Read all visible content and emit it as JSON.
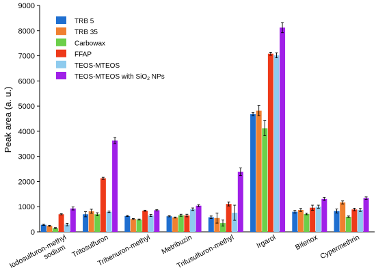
{
  "chart_data": {
    "type": "bar",
    "ylabel": "Peak area (a. u.)",
    "xlabel": "",
    "ylim": [
      0,
      9000
    ],
    "yticks": [
      0,
      1000,
      2000,
      3000,
      4000,
      5000,
      6000,
      7000,
      8000,
      9000
    ],
    "grid": false,
    "legend_position": "top-left",
    "categories": [
      [
        "Iodosulfuron-methyl",
        "sodium"
      ],
      [
        "Tritosulfuron"
      ],
      [
        "Tribenuron-methyl"
      ],
      [
        "Metribuzin"
      ],
      [
        "Trifusulfuron-methyl"
      ],
      [
        "Irgarol"
      ],
      [
        "Bifenox"
      ],
      [
        "Cypermethrin"
      ]
    ],
    "series": [
      {
        "name": "TRB 5",
        "color": "#1f6fd0",
        "values": [
          280,
          700,
          630,
          620,
          580,
          4680,
          800,
          830
        ],
        "errors": [
          20,
          100,
          20,
          20,
          50,
          60,
          50,
          80
        ]
      },
      {
        "name": "TRB 35",
        "color": "#f08030",
        "values": [
          240,
          820,
          510,
          570,
          550,
          4820,
          870,
          1170
        ],
        "errors": [
          20,
          80,
          20,
          20,
          200,
          200,
          60,
          60
        ]
      },
      {
        "name": "Carbowax",
        "color": "#6ccf4a",
        "values": [
          150,
          700,
          490,
          660,
          350,
          4120,
          710,
          600
        ],
        "errors": [
          20,
          60,
          20,
          40,
          120,
          300,
          30,
          30
        ]
      },
      {
        "name": "FFAP",
        "color": "#ee3a1a",
        "values": [
          700,
          2130,
          840,
          650,
          1110,
          7080,
          960,
          890
        ],
        "errors": [
          20,
          40,
          20,
          50,
          80,
          60,
          100,
          50
        ]
      },
      {
        "name": "TEOS-MTEOS",
        "color": "#8ecbee",
        "values": [
          290,
          800,
          650,
          900,
          760,
          7020,
          1000,
          870
        ],
        "errors": [
          50,
          30,
          40,
          50,
          300,
          100,
          60,
          60
        ]
      },
      {
        "name": "TEOS-MTEOS  with SiO",
        "name_sub": "2",
        "name_tail": " NPs",
        "color": "#a020e8",
        "values": [
          930,
          3630,
          860,
          1040,
          2390,
          8120,
          1310,
          1340
        ],
        "errors": [
          60,
          120,
          20,
          40,
          150,
          200,
          60,
          50
        ]
      }
    ]
  }
}
